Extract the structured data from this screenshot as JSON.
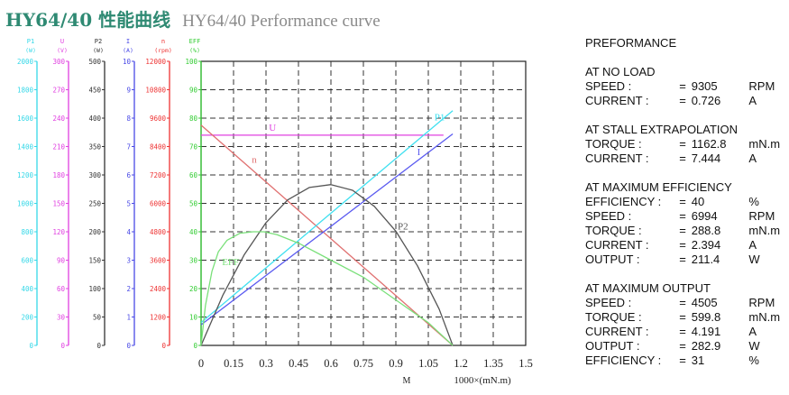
{
  "title": {
    "chinese": "HY64/40 性能曲线",
    "english": "HY64/40 Performance curve"
  },
  "spec": {
    "heading": "PREFORMANCE",
    "sections": [
      {
        "title": "AT NO LOAD",
        "rows": [
          {
            "label": "SPEED :",
            "eq": "=",
            "value": "9305",
            "unit": "RPM"
          },
          {
            "label": "CURRENT :",
            "eq": "=",
            "value": "0.726",
            "unit": "A"
          }
        ]
      },
      {
        "title": "AT STALL EXTRAPOLATION",
        "rows": [
          {
            "label": "TORQUE :",
            "eq": "=",
            "value": "1162.8",
            "unit": "mN.m"
          },
          {
            "label": "CURRENT :",
            "eq": "=",
            "value": "7.444",
            "unit": "A"
          }
        ]
      },
      {
        "title": "AT MAXIMUM EFFICIENCY",
        "rows": [
          {
            "label": "EFFICIENCY :",
            "eq": "=",
            "value": "40",
            "unit": "%"
          },
          {
            "label": "SPEED :",
            "eq": "=",
            "value": "6994",
            "unit": "RPM"
          },
          {
            "label": "TORQUE :",
            "eq": "=",
            "value": "288.8",
            "unit": "mN.m"
          },
          {
            "label": "CURRENT :",
            "eq": "=",
            "value": "2.394",
            "unit": "A"
          },
          {
            "label": "OUTPUT :",
            "eq": "=",
            "value": "211.4",
            "unit": "W"
          }
        ]
      },
      {
        "title": "AT MAXIMUM OUTPUT",
        "rows": [
          {
            "label": "SPEED :",
            "eq": "=",
            "value": "4505",
            "unit": "RPM"
          },
          {
            "label": "TORQUE :",
            "eq": "=",
            "value": "599.8",
            "unit": "mN.m"
          },
          {
            "label": "CURRENT :",
            "eq": "=",
            "value": "4.191",
            "unit": "A"
          },
          {
            "label": "OUTPUT :",
            "eq": "=",
            "value": "282.9",
            "unit": "W"
          },
          {
            "label": "EFFICIENCY :",
            "eq": "=",
            "value": "31",
            "unit": "%"
          }
        ]
      }
    ]
  },
  "chart_data": {
    "type": "line",
    "x": {
      "ticks": [
        "0",
        "0.15",
        "0.3",
        "0.45",
        "0.6",
        "0.75",
        "0.9",
        "1.05",
        "1.2",
        "1.35",
        "1.5"
      ],
      "range": [
        0,
        1.5
      ],
      "label_m": "M",
      "label_unit": "1000×(mN.m)"
    },
    "grid": true,
    "y_axes": [
      {
        "key": "P1",
        "label": "P1",
        "unit": "(W)",
        "color": "#35d8e8",
        "max": 2000,
        "ticks": [
          "2000",
          "1800",
          "1600",
          "1400",
          "1200",
          "1000",
          "800",
          "600",
          "400",
          "200",
          "0"
        ]
      },
      {
        "key": "U",
        "label": "U",
        "unit": "(V)",
        "color": "#e040e0",
        "max": 300,
        "ticks": [
          "300",
          "270",
          "240",
          "210",
          "180",
          "150",
          "120",
          "90",
          "60",
          "30",
          "0"
        ]
      },
      {
        "key": "P2",
        "label": "P2",
        "unit": "(W)",
        "color": "#333333",
        "max": 500,
        "ticks": [
          "500",
          "450",
          "400",
          "350",
          "300",
          "250",
          "200",
          "150",
          "100",
          "50",
          "0"
        ]
      },
      {
        "key": "I",
        "label": "I",
        "unit": "(A)",
        "color": "#4a4ae6",
        "max": 10,
        "ticks": [
          "10",
          "9",
          "8",
          "7",
          "6",
          "5",
          "4",
          "3",
          "2",
          "1",
          "0"
        ]
      },
      {
        "key": "n",
        "label": "n",
        "unit": "(rpm)",
        "color": "#ee3333",
        "max": 12000,
        "ticks": [
          "12000",
          "10800",
          "9600",
          "8400",
          "7200",
          "6000",
          "4800",
          "3600",
          "2400",
          "1200",
          "0"
        ]
      },
      {
        "key": "EFF",
        "label": "EFF",
        "unit": "(%)",
        "color": "#33cc33",
        "max": 100,
        "ticks": [
          "100",
          "90",
          "80",
          "70",
          "60",
          "50",
          "40",
          "30",
          "20",
          "10",
          "0"
        ]
      }
    ],
    "series": [
      {
        "name": "U",
        "axis": "U",
        "color": "#e040e0",
        "x": [
          0,
          1.12
        ],
        "y": [
          222,
          222
        ]
      },
      {
        "name": "n",
        "axis": "n",
        "color": "#e07070",
        "x": [
          0,
          1.1628
        ],
        "y": [
          9305,
          0
        ]
      },
      {
        "name": "I",
        "axis": "I",
        "color": "#5a5af0",
        "x": [
          0,
          1.1628
        ],
        "y": [
          0.726,
          7.444
        ]
      },
      {
        "name": "P1",
        "axis": "P1",
        "color": "#40e0f0",
        "x": [
          0,
          1.1628
        ],
        "y": [
          161,
          1653
        ]
      },
      {
        "name": "P2",
        "axis": "P2",
        "color": "#555555",
        "x": [
          0,
          0.1,
          0.2,
          0.3,
          0.4,
          0.5,
          0.6,
          0.7,
          0.8,
          0.9,
          1.0,
          1.1,
          1.1628
        ],
        "y": [
          0,
          88,
          160,
          216,
          256,
          278,
          283,
          273,
          245,
          201,
          140,
          64,
          0
        ]
      },
      {
        "name": "EFF",
        "axis": "EFF",
        "color": "#7ae07a",
        "x": [
          0,
          0.02,
          0.05,
          0.08,
          0.12,
          0.18,
          0.24,
          0.29,
          0.35,
          0.45,
          0.6,
          0.75,
          0.9,
          1.05,
          1.1628
        ],
        "y": [
          0,
          14,
          26,
          33,
          37,
          39.5,
          40,
          40,
          39,
          36,
          30,
          24,
          16,
          8,
          0
        ]
      }
    ],
    "curve_labels": [
      {
        "text": "U",
        "series": "U"
      },
      {
        "text": "n",
        "series": "n"
      },
      {
        "text": "I",
        "series": "I"
      },
      {
        "text": "P1",
        "series": "P1"
      },
      {
        "text": "P2",
        "series": "P2"
      },
      {
        "text": "EFF",
        "series": "EFF"
      }
    ]
  }
}
